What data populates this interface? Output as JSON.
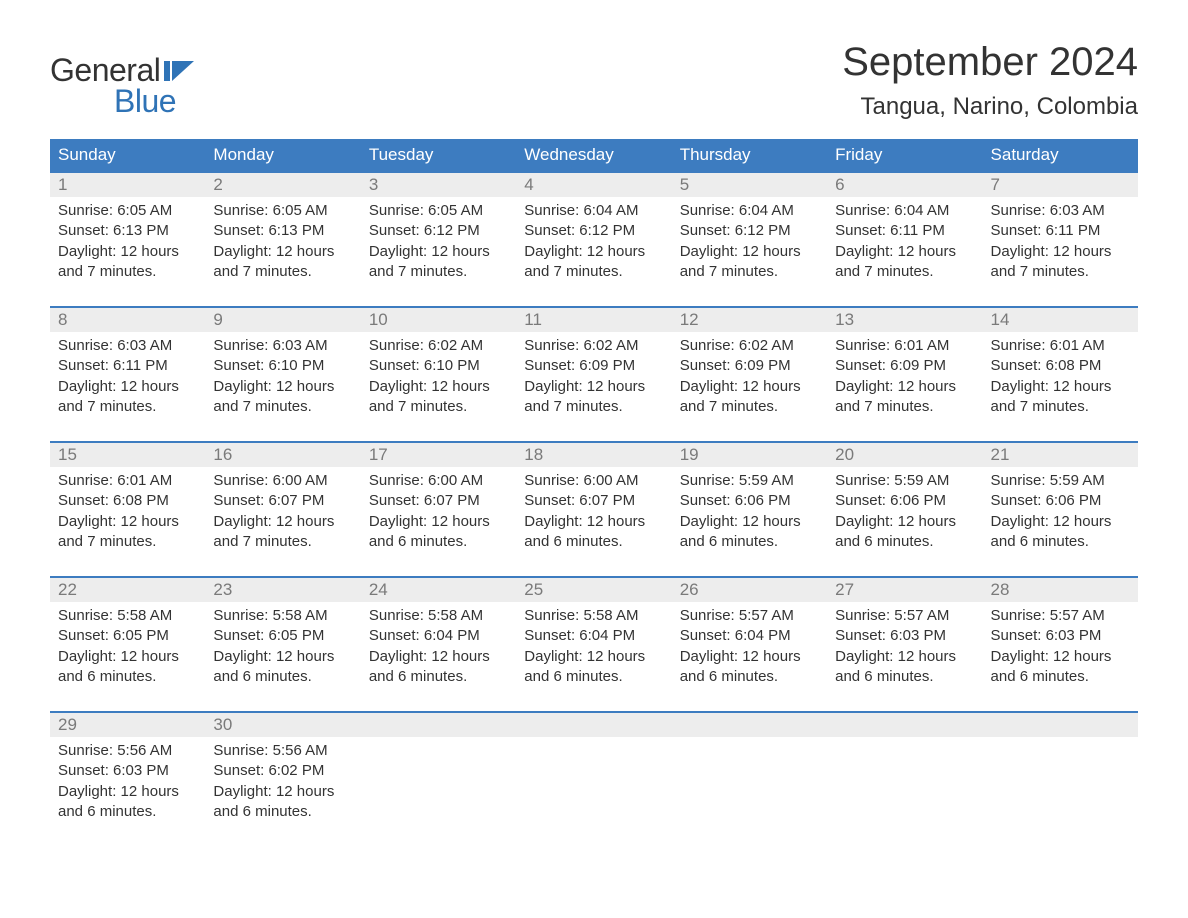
{
  "logo": {
    "text_general": "General",
    "text_blue": "Blue",
    "flag_color": "#2f73b6"
  },
  "title": "September 2024",
  "location": "Tangua, Narino, Colombia",
  "colors": {
    "header_bg": "#3d7cc0",
    "header_text": "#ffffff",
    "daynum_bg": "#ededed",
    "daynum_text": "#7a7a7a",
    "border_top": "#3d7cc0",
    "body_text": "#333333",
    "logo_blue": "#2f73b6",
    "background": "#ffffff"
  },
  "typography": {
    "title_fontsize": 40,
    "location_fontsize": 24,
    "header_fontsize": 17,
    "daynum_fontsize": 17,
    "body_fontsize": 15,
    "logo_fontsize": 32,
    "font_family": "Arial"
  },
  "weekdays": [
    "Sunday",
    "Monday",
    "Tuesday",
    "Wednesday",
    "Thursday",
    "Friday",
    "Saturday"
  ],
  "weeks": [
    [
      {
        "n": "1",
        "sunrise": "6:05 AM",
        "sunset": "6:13 PM",
        "daylight": "12 hours and 7 minutes."
      },
      {
        "n": "2",
        "sunrise": "6:05 AM",
        "sunset": "6:13 PM",
        "daylight": "12 hours and 7 minutes."
      },
      {
        "n": "3",
        "sunrise": "6:05 AM",
        "sunset": "6:12 PM",
        "daylight": "12 hours and 7 minutes."
      },
      {
        "n": "4",
        "sunrise": "6:04 AM",
        "sunset": "6:12 PM",
        "daylight": "12 hours and 7 minutes."
      },
      {
        "n": "5",
        "sunrise": "6:04 AM",
        "sunset": "6:12 PM",
        "daylight": "12 hours and 7 minutes."
      },
      {
        "n": "6",
        "sunrise": "6:04 AM",
        "sunset": "6:11 PM",
        "daylight": "12 hours and 7 minutes."
      },
      {
        "n": "7",
        "sunrise": "6:03 AM",
        "sunset": "6:11 PM",
        "daylight": "12 hours and 7 minutes."
      }
    ],
    [
      {
        "n": "8",
        "sunrise": "6:03 AM",
        "sunset": "6:11 PM",
        "daylight": "12 hours and 7 minutes."
      },
      {
        "n": "9",
        "sunrise": "6:03 AM",
        "sunset": "6:10 PM",
        "daylight": "12 hours and 7 minutes."
      },
      {
        "n": "10",
        "sunrise": "6:02 AM",
        "sunset": "6:10 PM",
        "daylight": "12 hours and 7 minutes."
      },
      {
        "n": "11",
        "sunrise": "6:02 AM",
        "sunset": "6:09 PM",
        "daylight": "12 hours and 7 minutes."
      },
      {
        "n": "12",
        "sunrise": "6:02 AM",
        "sunset": "6:09 PM",
        "daylight": "12 hours and 7 minutes."
      },
      {
        "n": "13",
        "sunrise": "6:01 AM",
        "sunset": "6:09 PM",
        "daylight": "12 hours and 7 minutes."
      },
      {
        "n": "14",
        "sunrise": "6:01 AM",
        "sunset": "6:08 PM",
        "daylight": "12 hours and 7 minutes."
      }
    ],
    [
      {
        "n": "15",
        "sunrise": "6:01 AM",
        "sunset": "6:08 PM",
        "daylight": "12 hours and 7 minutes."
      },
      {
        "n": "16",
        "sunrise": "6:00 AM",
        "sunset": "6:07 PM",
        "daylight": "12 hours and 7 minutes."
      },
      {
        "n": "17",
        "sunrise": "6:00 AM",
        "sunset": "6:07 PM",
        "daylight": "12 hours and 6 minutes."
      },
      {
        "n": "18",
        "sunrise": "6:00 AM",
        "sunset": "6:07 PM",
        "daylight": "12 hours and 6 minutes."
      },
      {
        "n": "19",
        "sunrise": "5:59 AM",
        "sunset": "6:06 PM",
        "daylight": "12 hours and 6 minutes."
      },
      {
        "n": "20",
        "sunrise": "5:59 AM",
        "sunset": "6:06 PM",
        "daylight": "12 hours and 6 minutes."
      },
      {
        "n": "21",
        "sunrise": "5:59 AM",
        "sunset": "6:06 PM",
        "daylight": "12 hours and 6 minutes."
      }
    ],
    [
      {
        "n": "22",
        "sunrise": "5:58 AM",
        "sunset": "6:05 PM",
        "daylight": "12 hours and 6 minutes."
      },
      {
        "n": "23",
        "sunrise": "5:58 AM",
        "sunset": "6:05 PM",
        "daylight": "12 hours and 6 minutes."
      },
      {
        "n": "24",
        "sunrise": "5:58 AM",
        "sunset": "6:04 PM",
        "daylight": "12 hours and 6 minutes."
      },
      {
        "n": "25",
        "sunrise": "5:58 AM",
        "sunset": "6:04 PM",
        "daylight": "12 hours and 6 minutes."
      },
      {
        "n": "26",
        "sunrise": "5:57 AM",
        "sunset": "6:04 PM",
        "daylight": "12 hours and 6 minutes."
      },
      {
        "n": "27",
        "sunrise": "5:57 AM",
        "sunset": "6:03 PM",
        "daylight": "12 hours and 6 minutes."
      },
      {
        "n": "28",
        "sunrise": "5:57 AM",
        "sunset": "6:03 PM",
        "daylight": "12 hours and 6 minutes."
      }
    ],
    [
      {
        "n": "29",
        "sunrise": "5:56 AM",
        "sunset": "6:03 PM",
        "daylight": "12 hours and 6 minutes."
      },
      {
        "n": "30",
        "sunrise": "5:56 AM",
        "sunset": "6:02 PM",
        "daylight": "12 hours and 6 minutes."
      },
      null,
      null,
      null,
      null,
      null
    ]
  ],
  "labels": {
    "sunrise_prefix": "Sunrise: ",
    "sunset_prefix": "Sunset: ",
    "daylight_prefix": "Daylight: "
  }
}
